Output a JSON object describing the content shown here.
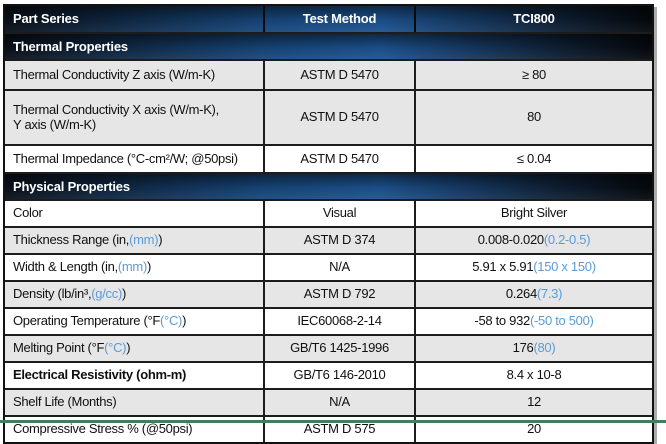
{
  "colors": {
    "header_gradient_dark": "#0a1019",
    "header_gradient_blue": "#1d5391",
    "row_gray": "#e6e6e6",
    "accent_blue": "#5b9bd5",
    "border": "#1c1c1c",
    "green_line": "#467c5e"
  },
  "header": {
    "part_series": "Part Series",
    "test_method": "Test Method",
    "part_number": "TCI800"
  },
  "sections": [
    {
      "title": "Thermal Properties",
      "rows": [
        {
          "label": {
            "text": "Thermal Conductivity Z axis (W/m-K)",
            "blue": "",
            "after": ""
          },
          "method": "ASTM D 5470",
          "value": {
            "text": "≥ 80",
            "blue": "",
            "after": ""
          }
        },
        {
          "label": {
            "text": "Thermal Conductivity X axis (W/m-K),\nY axis (W/m-K)",
            "blue": "",
            "after": ""
          },
          "method": "ASTM D 5470",
          "value": {
            "text": "80",
            "blue": "",
            "after": ""
          }
        },
        {
          "label": {
            "text": "Thermal Impedance (°C-cm²/W; @50psi)",
            "blue": "",
            "after": ""
          },
          "method": "ASTM D 5470",
          "value": {
            "text": "≤ 0.04",
            "blue": "",
            "after": ""
          }
        }
      ]
    },
    {
      "title": "Physical Properties",
      "rows": [
        {
          "label": {
            "text": "Color",
            "blue": "",
            "after": ""
          },
          "method": "Visual",
          "value": {
            "text": "Bright Silver",
            "blue": "",
            "after": ""
          }
        },
        {
          "label": {
            "text": "Thickness Range (in, ",
            "blue": "(mm)",
            "after": ")"
          },
          "method": "ASTM D 374",
          "value": {
            "text": "0.008-0.020 ",
            "blue": "(0.2-0.5)",
            "after": ""
          }
        },
        {
          "label": {
            "text": "Width & Length (in, ",
            "blue": "(mm)",
            "after": ")"
          },
          "method": "N/A",
          "value": {
            "text": "5.91 x 5.91 ",
            "blue": "(150 x 150)",
            "after": ""
          }
        },
        {
          "label": {
            "text": "Density (lb/in³, ",
            "blue": "(g/cc)",
            "after": ")"
          },
          "method": "ASTM D 792",
          "value": {
            "text": "0.264 ",
            "blue": "(7.3)",
            "after": ""
          }
        },
        {
          "label": {
            "text": "Operating Temperature (°F ",
            "blue": "(°C)",
            "after": ")"
          },
          "method": "IEC60068-2-14",
          "value": {
            "text": "-58 to 932 ",
            "blue": "(-50 to 500)",
            "after": ""
          }
        },
        {
          "label": {
            "text": "Melting Point (°F ",
            "blue": "(°C)",
            "after": ")"
          },
          "method": "GB/T6 1425-1996",
          "value": {
            "text": "176 ",
            "blue": "(80)",
            "after": ""
          }
        },
        {
          "label": {
            "text": "Electrical Resistivity (ohm-m)",
            "blue": "",
            "after": ""
          },
          "method": "GB/T6 146-2010",
          "value": {
            "text": "8.4 x 10-8",
            "blue": "",
            "after": ""
          }
        },
        {
          "label": {
            "text": "Shelf Life (Months)",
            "blue": "",
            "after": ""
          },
          "method": "N/A",
          "value": {
            "text": "12",
            "blue": "",
            "after": ""
          }
        },
        {
          "label": {
            "text": "Compressive Stress % (@50psi)",
            "blue": "",
            "after": ""
          },
          "method": "ASTM D 575",
          "value": {
            "text": "20",
            "blue": "",
            "after": ""
          }
        }
      ]
    }
  ]
}
